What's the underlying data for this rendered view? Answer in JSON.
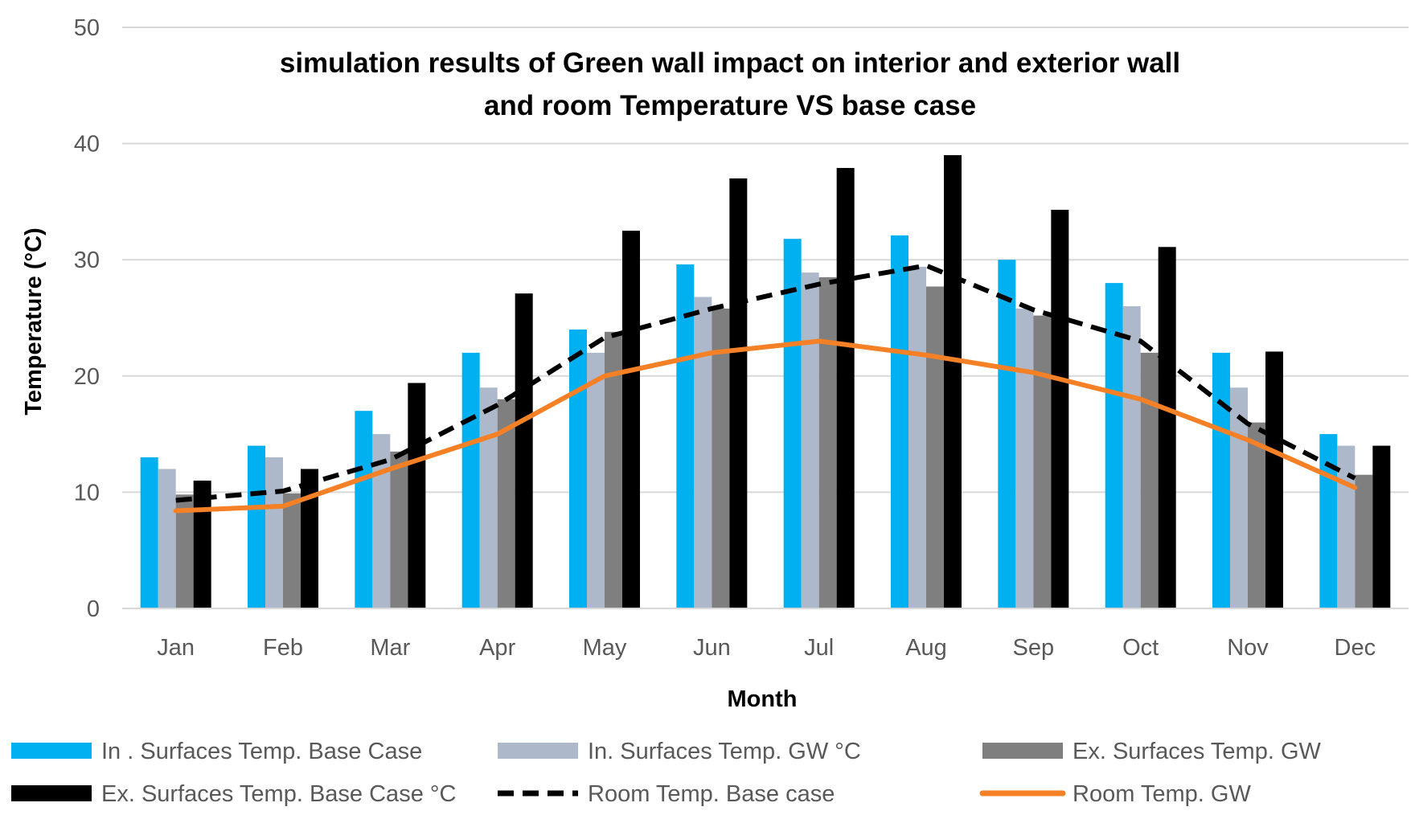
{
  "chart_data": {
    "type": "bar",
    "title_lines": [
      "simulation results of  Green wall impact on  interior and exterior  wall",
      "and room Temperature VS base case"
    ],
    "xlabel": "Month",
    "ylabel": "Temperature (°C)",
    "ylim": [
      0,
      50
    ],
    "yticks": [
      0,
      10,
      20,
      30,
      40,
      50
    ],
    "grid": true,
    "legend_position": "bottom",
    "categories": [
      "Jan",
      "Feb",
      "Mar",
      "Apr",
      "May",
      "Jun",
      "Jul",
      "Aug",
      "Sep",
      "Oct",
      "Nov",
      "Dec"
    ],
    "series": [
      {
        "name": "In . Surfaces Temp. Base Case",
        "kind": "bar",
        "color": "#00B0F0",
        "values": [
          13,
          14,
          17,
          22,
          24,
          29.6,
          31.8,
          32.1,
          30,
          28,
          22,
          15
        ]
      },
      {
        "name": "In. Surfaces Temp. GW °C",
        "kind": "bar",
        "color": "#ADB9CA",
        "values": [
          12,
          13,
          15,
          19,
          22,
          26.8,
          28.9,
          29.4,
          25.8,
          26,
          19,
          14
        ]
      },
      {
        "name": "Ex. Surfaces Temp. GW",
        "kind": "bar",
        "color": "#7F7F7F",
        "values": [
          9.8,
          9.9,
          13.5,
          18,
          23.8,
          25.8,
          28.5,
          27.7,
          25.2,
          22,
          16,
          11.5
        ]
      },
      {
        "name": "Ex. Surfaces Temp. Base Case °C",
        "kind": "bar",
        "color": "#000000",
        "values": [
          11,
          12,
          19.4,
          27.1,
          32.5,
          37,
          37.9,
          39,
          34.3,
          31.1,
          22.1,
          14
        ]
      },
      {
        "name": "Room Temp. Base case",
        "kind": "line",
        "dash": true,
        "color": "#000000",
        "values": [
          9.3,
          10.1,
          12.8,
          17.5,
          23.3,
          25.8,
          27.9,
          29.5,
          25.7,
          23,
          15.9,
          11.2
        ]
      },
      {
        "name": "Room Temp. GW",
        "kind": "line",
        "dash": false,
        "color": "#F58025",
        "values": [
          8.4,
          8.8,
          12,
          15,
          20,
          22,
          23,
          21.8,
          20.3,
          18,
          14.5,
          10.4
        ]
      }
    ]
  }
}
